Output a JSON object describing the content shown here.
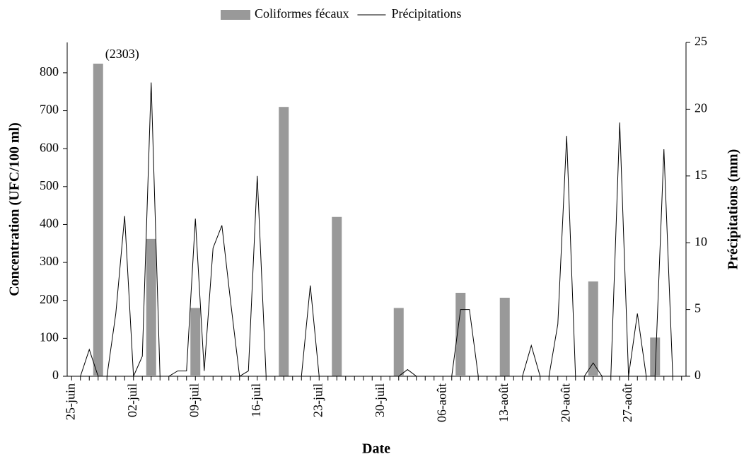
{
  "chart_data": {
    "type": "bar-line",
    "legend": "top",
    "xlabel": "Date",
    "ylabel": "Concentration (UFC/100 ml)",
    "y2label": "Précipitations (mm)",
    "categories": [
      "25-juin",
      null,
      null,
      null,
      null,
      null,
      null,
      "02-juil",
      null,
      null,
      null,
      null,
      null,
      null,
      "09-juil",
      null,
      null,
      null,
      null,
      null,
      null,
      "16-juil",
      null,
      null,
      null,
      null,
      null,
      null,
      "23-juil",
      null,
      null,
      null,
      null,
      null,
      null,
      "30-juil",
      null,
      null,
      null,
      null,
      null,
      null,
      "06-août",
      null,
      null,
      null,
      null,
      null,
      null,
      "13-août",
      null,
      null,
      null,
      null,
      null,
      null,
      "20-août",
      null,
      null,
      null,
      null,
      null,
      null,
      "27-août",
      null,
      null,
      null,
      null,
      null,
      null
    ],
    "series": [
      {
        "name": "Coliformes fécaux",
        "type": "bar",
        "color": "#999999",
        "values": [
          null,
          null,
          null,
          2303,
          null,
          null,
          null,
          null,
          null,
          362,
          null,
          null,
          null,
          null,
          180,
          null,
          null,
          null,
          null,
          null,
          null,
          null,
          null,
          null,
          710,
          null,
          null,
          null,
          null,
          null,
          420,
          null,
          null,
          null,
          null,
          null,
          null,
          180,
          null,
          null,
          null,
          null,
          null,
          null,
          220,
          null,
          null,
          null,
          null,
          207,
          null,
          null,
          null,
          null,
          null,
          null,
          null,
          null,
          null,
          250,
          null,
          null,
          null,
          null,
          null,
          null,
          102,
          null,
          null,
          null
        ],
        "value_labels": [
          null,
          null,
          null,
          "(2303)",
          null,
          null,
          null,
          null,
          null,
          null,
          null,
          null,
          null,
          null,
          null,
          null,
          null,
          null,
          null,
          null,
          null,
          null,
          null,
          null,
          null,
          null,
          null,
          null,
          null,
          null,
          null,
          null,
          null,
          null,
          null,
          null,
          null,
          null,
          null,
          null,
          null,
          null,
          null,
          null,
          null,
          null,
          null,
          null,
          null,
          null,
          null,
          null,
          null,
          null,
          null,
          null,
          null,
          null,
          null,
          null,
          null,
          null,
          null,
          null,
          null,
          null,
          null,
          null,
          null,
          null
        ]
      },
      {
        "name": "Précipitations",
        "type": "line",
        "axis": "y2",
        "color": "#000000",
        "values": [
          null,
          0,
          2,
          0,
          0,
          4.7,
          12,
          0,
          1.5,
          22,
          0,
          0,
          0.4,
          0.4,
          11.8,
          0.4,
          9.6,
          11.3,
          5.5,
          0,
          0.4,
          15,
          0,
          0,
          0,
          0,
          0,
          6.8,
          0,
          0,
          0,
          0,
          0,
          0,
          0,
          0,
          0,
          0,
          0.5,
          0,
          0,
          0,
          0,
          0,
          5,
          5,
          0,
          0,
          0,
          0,
          0,
          0,
          2.3,
          0,
          0,
          3.9,
          18,
          0,
          0,
          1,
          0,
          0,
          19,
          0,
          4.7,
          0,
          0,
          17,
          0,
          null
        ]
      }
    ],
    "ylim": [
      0,
      880
    ],
    "yticks": [
      0,
      100,
      200,
      300,
      400,
      500,
      600,
      700,
      800
    ],
    "y2lim": [
      0,
      25
    ],
    "y2ticks": [
      0,
      5,
      10,
      15,
      20,
      25
    ]
  }
}
